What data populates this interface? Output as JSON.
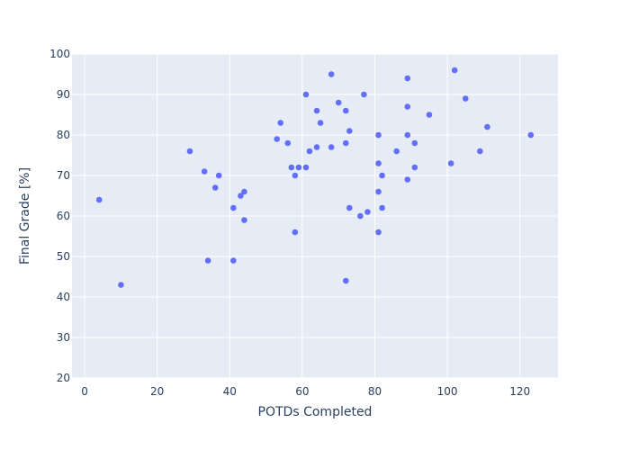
{
  "chart_data": {
    "type": "scatter",
    "xlabel": "POTDs Completed",
    "ylabel": "Final Grade [%]",
    "xlim": [
      -3.5,
      130.5
    ],
    "ylim": [
      20,
      100
    ],
    "x_ticks": [
      0,
      20,
      40,
      60,
      80,
      100,
      120
    ],
    "y_ticks": [
      20,
      30,
      40,
      50,
      60,
      70,
      80,
      90,
      100
    ],
    "x_tick_labels": [
      "0",
      "20",
      "40",
      "60",
      "80",
      "100",
      "120"
    ],
    "y_tick_labels": [
      "20",
      "30",
      "40",
      "50",
      "60",
      "70",
      "80",
      "90",
      "100"
    ],
    "grid": true,
    "colors": {
      "marker": "#636efa",
      "plot_bg": "#e5ecf6",
      "grid": "#ffffff",
      "text": "#2a3f5f"
    },
    "points": [
      {
        "x": 4,
        "y": 64
      },
      {
        "x": 10,
        "y": 43
      },
      {
        "x": 29,
        "y": 76
      },
      {
        "x": 33,
        "y": 71
      },
      {
        "x": 34,
        "y": 49
      },
      {
        "x": 36,
        "y": 67
      },
      {
        "x": 37,
        "y": 70
      },
      {
        "x": 41,
        "y": 62
      },
      {
        "x": 41,
        "y": 49
      },
      {
        "x": 43,
        "y": 65
      },
      {
        "x": 44,
        "y": 66
      },
      {
        "x": 44,
        "y": 59
      },
      {
        "x": 53,
        "y": 79
      },
      {
        "x": 54,
        "y": 83
      },
      {
        "x": 56,
        "y": 78
      },
      {
        "x": 57,
        "y": 72
      },
      {
        "x": 58,
        "y": 70
      },
      {
        "x": 58,
        "y": 56
      },
      {
        "x": 59,
        "y": 72
      },
      {
        "x": 61,
        "y": 90
      },
      {
        "x": 61,
        "y": 72
      },
      {
        "x": 62,
        "y": 76
      },
      {
        "x": 64,
        "y": 86
      },
      {
        "x": 64,
        "y": 77
      },
      {
        "x": 65,
        "y": 83
      },
      {
        "x": 68,
        "y": 95
      },
      {
        "x": 68,
        "y": 77
      },
      {
        "x": 70,
        "y": 88
      },
      {
        "x": 72,
        "y": 86
      },
      {
        "x": 72,
        "y": 78
      },
      {
        "x": 72,
        "y": 44
      },
      {
        "x": 73,
        "y": 81
      },
      {
        "x": 73,
        "y": 62
      },
      {
        "x": 76,
        "y": 60
      },
      {
        "x": 77,
        "y": 90
      },
      {
        "x": 78,
        "y": 61
      },
      {
        "x": 81,
        "y": 80
      },
      {
        "x": 81,
        "y": 73
      },
      {
        "x": 81,
        "y": 66
      },
      {
        "x": 81,
        "y": 56
      },
      {
        "x": 82,
        "y": 70
      },
      {
        "x": 82,
        "y": 62
      },
      {
        "x": 86,
        "y": 76
      },
      {
        "x": 89,
        "y": 94
      },
      {
        "x": 89,
        "y": 87
      },
      {
        "x": 89,
        "y": 80
      },
      {
        "x": 89,
        "y": 69
      },
      {
        "x": 91,
        "y": 78
      },
      {
        "x": 91,
        "y": 72
      },
      {
        "x": 95,
        "y": 85
      },
      {
        "x": 101,
        "y": 73
      },
      {
        "x": 102,
        "y": 96
      },
      {
        "x": 105,
        "y": 89
      },
      {
        "x": 109,
        "y": 76
      },
      {
        "x": 111,
        "y": 82
      },
      {
        "x": 123,
        "y": 80
      }
    ]
  }
}
